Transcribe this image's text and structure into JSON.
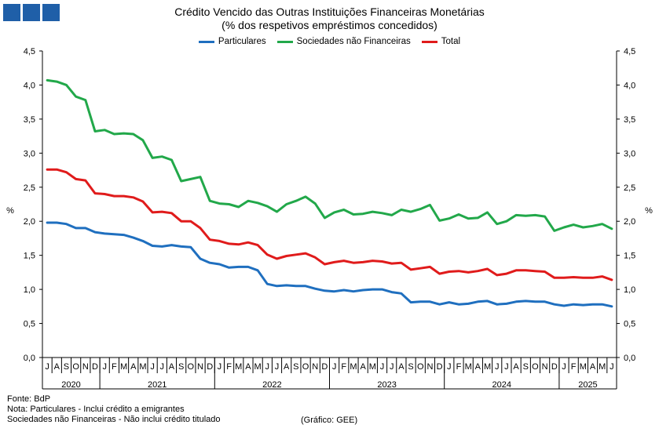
{
  "title_line1": "Crédito Vencido das Outras Instituições Financeiras Monetárias",
  "title_line2": "(% dos respetivos empréstimos concedidos)",
  "footer": {
    "source": "Fonte: BdP",
    "note1": "Nota: Particulares - Inclui crédito a emigrantes",
    "note2": "Sociedades não Financeiras - Não inclui crédito titulado",
    "credit": "(Gráfico: GEE)"
  },
  "chart_data": {
    "type": "line",
    "ylabel_left": "%",
    "ylabel_right": "%",
    "ylim": [
      0,
      4.5
    ],
    "yticks": [
      "0,0",
      "0,5",
      "1,0",
      "1,5",
      "2,0",
      "2,5",
      "3,0",
      "3,5",
      "4,0",
      "4,5"
    ],
    "grid": false,
    "legend": "top-center",
    "month_labels": [
      "J",
      "A",
      "S",
      "O",
      "N",
      "D",
      "J",
      "F",
      "M",
      "A",
      "M",
      "J",
      "J",
      "A",
      "S",
      "O",
      "N",
      "D",
      "J",
      "F",
      "M",
      "A",
      "M",
      "J",
      "J",
      "A",
      "S",
      "O",
      "N",
      "D",
      "J",
      "F",
      "M",
      "A",
      "M",
      "J",
      "J",
      "A",
      "S",
      "O",
      "N",
      "D",
      "J",
      "F",
      "M",
      "A",
      "M",
      "J",
      "J",
      "A",
      "S",
      "O",
      "N",
      "D",
      "J",
      "F",
      "M",
      "A",
      "M",
      "J"
    ],
    "years": [
      {
        "label": "2020",
        "start": 0,
        "count": 6
      },
      {
        "label": "2021",
        "start": 6,
        "count": 12
      },
      {
        "label": "2022",
        "start": 18,
        "count": 12
      },
      {
        "label": "2023",
        "start": 30,
        "count": 12
      },
      {
        "label": "2024",
        "start": 42,
        "count": 12
      },
      {
        "label": "2025",
        "start": 54,
        "count": 6
      }
    ],
    "series": [
      {
        "name": "Particulares",
        "color": "#1f6fbf",
        "values": [
          1.98,
          1.98,
          1.96,
          1.9,
          1.9,
          1.84,
          1.82,
          1.81,
          1.8,
          1.76,
          1.71,
          1.64,
          1.63,
          1.65,
          1.63,
          1.62,
          1.45,
          1.39,
          1.37,
          1.32,
          1.33,
          1.33,
          1.28,
          1.08,
          1.05,
          1.06,
          1.05,
          1.05,
          1.01,
          0.98,
          0.97,
          0.99,
          0.97,
          0.99,
          1.0,
          1.0,
          0.96,
          0.94,
          0.81,
          0.82,
          0.82,
          0.78,
          0.81,
          0.78,
          0.79,
          0.82,
          0.83,
          0.78,
          0.79,
          0.82,
          0.83,
          0.82,
          0.82,
          0.78,
          0.76,
          0.78,
          0.77,
          0.78,
          0.78,
          0.75
        ]
      },
      {
        "name": "Sociedades não Financeiras",
        "color": "#22a84a",
        "values": [
          4.07,
          4.05,
          4.0,
          3.83,
          3.78,
          3.32,
          3.34,
          3.28,
          3.29,
          3.28,
          3.19,
          2.93,
          2.95,
          2.9,
          2.59,
          2.62,
          2.65,
          2.3,
          2.26,
          2.25,
          2.21,
          2.3,
          2.27,
          2.22,
          2.14,
          2.25,
          2.3,
          2.36,
          2.26,
          2.05,
          2.13,
          2.17,
          2.1,
          2.11,
          2.14,
          2.12,
          2.09,
          2.17,
          2.14,
          2.18,
          2.24,
          2.01,
          2.04,
          2.1,
          2.04,
          2.05,
          2.13,
          1.96,
          2.0,
          2.09,
          2.08,
          2.09,
          2.07,
          1.86,
          1.91,
          1.95,
          1.91,
          1.93,
          1.96,
          1.89
        ]
      },
      {
        "name": "Total",
        "color": "#e01b1b",
        "values": [
          2.76,
          2.76,
          2.72,
          2.62,
          2.6,
          2.41,
          2.4,
          2.37,
          2.37,
          2.35,
          2.29,
          2.13,
          2.14,
          2.12,
          2.0,
          2.0,
          1.9,
          1.73,
          1.71,
          1.67,
          1.66,
          1.69,
          1.65,
          1.51,
          1.45,
          1.49,
          1.51,
          1.53,
          1.47,
          1.37,
          1.4,
          1.42,
          1.39,
          1.4,
          1.42,
          1.41,
          1.38,
          1.39,
          1.29,
          1.31,
          1.33,
          1.23,
          1.26,
          1.27,
          1.25,
          1.27,
          1.3,
          1.21,
          1.23,
          1.28,
          1.28,
          1.27,
          1.26,
          1.17,
          1.17,
          1.18,
          1.17,
          1.17,
          1.19,
          1.14
        ]
      }
    ]
  }
}
